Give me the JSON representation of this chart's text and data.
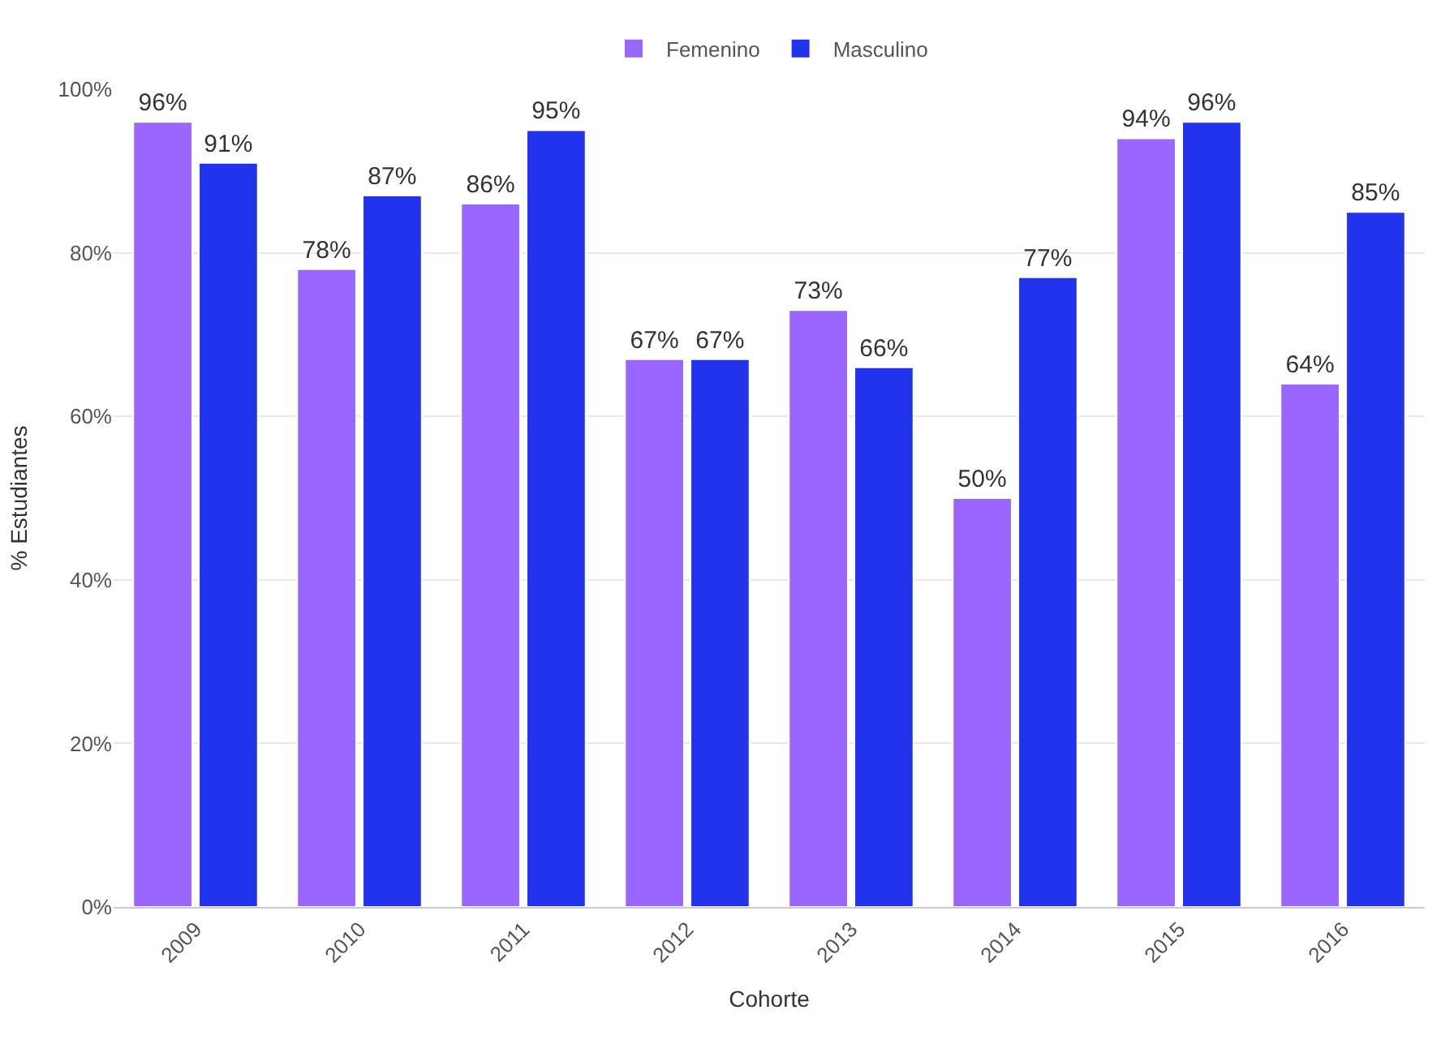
{
  "chart_data": {
    "type": "bar",
    "xlabel": "Cohorte",
    "ylabel": "% Estudiantes",
    "categories": [
      "2009",
      "2010",
      "2011",
      "2012",
      "2013",
      "2014",
      "2015",
      "2016"
    ],
    "series": [
      {
        "name": "Femenino",
        "color": "#9966ff",
        "values": [
          96,
          78,
          86,
          67,
          73,
          50,
          94,
          64
        ],
        "value_labels": [
          "96%",
          "78%",
          "86%",
          "67%",
          "73%",
          "50%",
          "94%",
          "64%"
        ]
      },
      {
        "name": "Masculino",
        "color": "#2233ee",
        "values": [
          91,
          87,
          95,
          67,
          66,
          77,
          96,
          85
        ],
        "value_labels": [
          "91%",
          "87%",
          "95%",
          "67%",
          "66%",
          "77%",
          "96%",
          "85%"
        ]
      }
    ],
    "ylim": [
      0,
      100
    ],
    "yticks": [
      {
        "value": 0,
        "label": "0%"
      },
      {
        "value": 20,
        "label": "20%"
      },
      {
        "value": 40,
        "label": "40%"
      },
      {
        "value": 60,
        "label": "60%"
      },
      {
        "value": 80,
        "label": "80%"
      },
      {
        "value": 100,
        "label": "100%"
      }
    ],
    "grid": "y",
    "legend": "top"
  }
}
